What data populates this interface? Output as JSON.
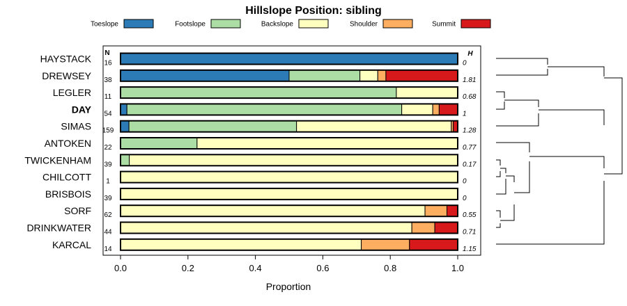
{
  "chart_data": {
    "type": "bar",
    "orientation": "horizontal",
    "stacked": true,
    "title": "Hillslope Position: sibling",
    "xlabel": "Proportion",
    "ylabel": "",
    "xlim": [
      0,
      1
    ],
    "x_ticks": [
      "0.0",
      "0.2",
      "0.4",
      "0.6",
      "0.8",
      "1.0"
    ],
    "legend_position": "top",
    "n_header": "N",
    "h_header": "H",
    "highlight_category": "DAY",
    "series": [
      {
        "name": "Toeslope",
        "color": "#2c7bb6"
      },
      {
        "name": "Footslope",
        "color": "#abdda4"
      },
      {
        "name": "Backslope",
        "color": "#ffffbf"
      },
      {
        "name": "Shoulder",
        "color": "#fdae61"
      },
      {
        "name": "Summit",
        "color": "#d7191c"
      }
    ],
    "rows": [
      {
        "label": "HAYSTACK",
        "n": "16",
        "h": "0",
        "values": [
          1.0,
          0,
          0,
          0,
          0
        ]
      },
      {
        "label": "DREWSEY",
        "n": "38",
        "h": "1.81",
        "values": [
          0.5,
          0.21,
          0.053,
          0.024,
          0.213
        ]
      },
      {
        "label": "LEGLER",
        "n": "11",
        "h": "0.68",
        "values": [
          0,
          0.818,
          0.182,
          0,
          0
        ]
      },
      {
        "label": "DAY",
        "n": "54",
        "h": "1",
        "values": [
          0.019,
          0.815,
          0.092,
          0.019,
          0.055
        ]
      },
      {
        "label": "SIMAS",
        "n": "159",
        "h": "1.28",
        "values": [
          0.025,
          0.497,
          0.459,
          0.006,
          0.013
        ]
      },
      {
        "label": "ANTOKEN",
        "n": "22",
        "h": "0.77",
        "values": [
          0,
          0.227,
          0.773,
          0,
          0
        ]
      },
      {
        "label": "TWICKENHAM",
        "n": "39",
        "h": "0.17",
        "values": [
          0,
          0.026,
          0.974,
          0,
          0
        ]
      },
      {
        "label": "CHILCOTT",
        "n": "1",
        "h": "0",
        "values": [
          0,
          0,
          1.0,
          0,
          0
        ]
      },
      {
        "label": "BRISBOIS",
        "n": "39",
        "h": "0",
        "values": [
          0,
          0,
          1.0,
          0,
          0
        ]
      },
      {
        "label": "SORF",
        "n": "62",
        "h": "0.55",
        "values": [
          0,
          0,
          0.903,
          0.065,
          0.032
        ]
      },
      {
        "label": "DRINKWATER",
        "n": "44",
        "h": "0.71",
        "values": [
          0,
          0,
          0.864,
          0.068,
          0.068
        ]
      },
      {
        "label": "KARCAL",
        "n": "14",
        "h": "1.15",
        "values": [
          0,
          0,
          0.714,
          0.143,
          0.143
        ]
      }
    ]
  }
}
